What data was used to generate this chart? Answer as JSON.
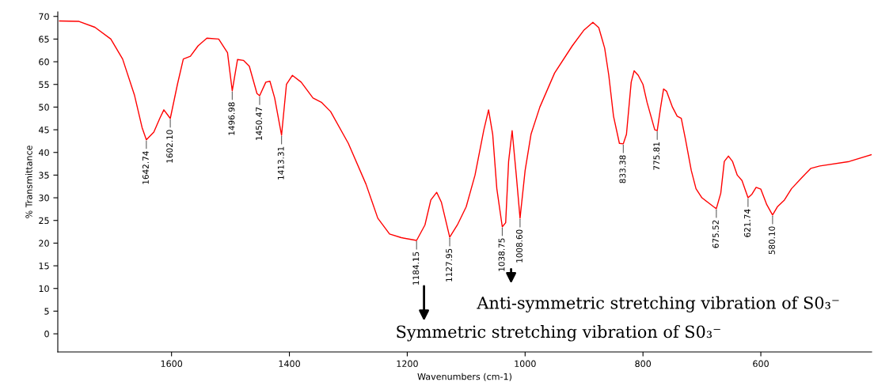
{
  "chart_data": {
    "type": "line",
    "xlabel": "Wavenumbers (cm-1)",
    "ylabel": "% Transmittance",
    "xlim": [
      1793,
      412
    ],
    "ylim": [
      -4,
      71
    ],
    "xticks": [
      1600,
      1400,
      1200,
      1000,
      800,
      600
    ],
    "yticks": [
      0,
      5,
      10,
      15,
      20,
      25,
      30,
      35,
      40,
      45,
      50,
      55,
      60,
      65,
      70
    ],
    "grid": false,
    "marker": "none",
    "line_style": "solid",
    "series": [
      {
        "color": "#ff0000",
        "x": [
          1790,
          1757,
          1730,
          1703,
          1683,
          1663,
          1650,
          1642.74,
          1630,
          1620,
          1613,
          1602.1,
          1590,
          1580,
          1568,
          1555,
          1540,
          1520,
          1505,
          1496.98,
          1488,
          1478,
          1468,
          1455,
          1450.47,
          1440,
          1433,
          1425,
          1413.31,
          1405,
          1395,
          1380,
          1360,
          1345,
          1330,
          1300,
          1270,
          1250,
          1230,
          1210,
          1184.15,
          1170,
          1160,
          1150,
          1142,
          1127.95,
          1115,
          1100,
          1085,
          1070,
          1062,
          1055,
          1048,
          1038.75,
          1033,
          1028,
          1022,
          1015,
          1008.6,
          1000,
          990,
          975,
          950,
          920,
          900,
          885,
          875,
          865,
          858,
          850,
          840,
          833.38,
          828,
          820,
          815,
          808,
          800,
          793,
          780,
          775.81,
          770,
          765,
          760,
          750,
          742,
          735,
          728,
          718,
          710,
          700,
          690,
          680,
          675.52,
          668,
          662,
          655,
          648,
          640,
          632,
          621.74,
          615,
          608,
          600,
          590,
          580.1,
          572,
          560,
          548,
          530,
          515,
          500,
          450,
          412
        ],
        "values": [
          69.0,
          68.9,
          67.6,
          65.0,
          60.6,
          52.7,
          45.5,
          42.8,
          44.5,
          47.5,
          49.4,
          47.5,
          55.0,
          60.6,
          61.2,
          63.5,
          65.2,
          65.0,
          62.0,
          53.6,
          60.5,
          60.3,
          59.0,
          53.0,
          52.5,
          55.5,
          55.7,
          52.0,
          43.8,
          55.0,
          57.0,
          55.5,
          52.0,
          51.0,
          49.0,
          42.0,
          33.0,
          25.5,
          22.0,
          21.2,
          20.6,
          24.0,
          29.5,
          31.2,
          29.0,
          21.3,
          24.0,
          28.0,
          35.0,
          45.0,
          49.4,
          44.0,
          32.0,
          23.6,
          24.5,
          38.0,
          44.8,
          35.0,
          25.5,
          36.0,
          44.0,
          50.0,
          57.5,
          63.5,
          67.0,
          68.7,
          67.5,
          63.0,
          57.0,
          48.0,
          42.0,
          41.9,
          44.0,
          55.5,
          58.0,
          57.0,
          55.0,
          51.0,
          45.0,
          44.8,
          50.0,
          54.0,
          53.5,
          50.0,
          48.0,
          47.5,
          43.0,
          36.0,
          32.0,
          30.0,
          29.0,
          28.0,
          27.6,
          31.0,
          38.0,
          39.2,
          38.0,
          35.0,
          33.8,
          30.0,
          30.8,
          32.3,
          31.9,
          28.5,
          26.2,
          28.0,
          29.5,
          32.0,
          34.5,
          36.5,
          37.0,
          38.0,
          39.5
        ]
      }
    ],
    "annotations": [
      {
        "text": "1642.74",
        "x": 1642.74,
        "y": 42.8
      },
      {
        "text": "1602.10",
        "x": 1602.1,
        "y": 47.5
      },
      {
        "text": "1496.98",
        "x": 1496.98,
        "y": 53.6
      },
      {
        "text": "1450.47",
        "x": 1450.47,
        "y": 52.5
      },
      {
        "text": "1413.31",
        "x": 1413.31,
        "y": 43.8
      },
      {
        "text": "1184.15",
        "x": 1184.15,
        "y": 20.6
      },
      {
        "text": "1127.95",
        "x": 1127.95,
        "y": 21.3
      },
      {
        "text": "1038.75",
        "x": 1038.75,
        "y": 23.6
      },
      {
        "text": "1008.60",
        "x": 1008.6,
        "y": 25.5
      },
      {
        "text": "833.38",
        "x": 833.38,
        "y": 41.9
      },
      {
        "text": "775.81",
        "x": 775.81,
        "y": 44.8
      },
      {
        "text": "675.52",
        "x": 675.52,
        "y": 27.6
      },
      {
        "text": "621.74",
        "x": 621.74,
        "y": 30.0
      },
      {
        "text": "580.10",
        "x": 580.1,
        "y": 26.2
      },
      "Anti-symmetric stretching vibration of S0₃⁻",
      "Symmetric stretching vibration of S0₃⁻"
    ]
  }
}
